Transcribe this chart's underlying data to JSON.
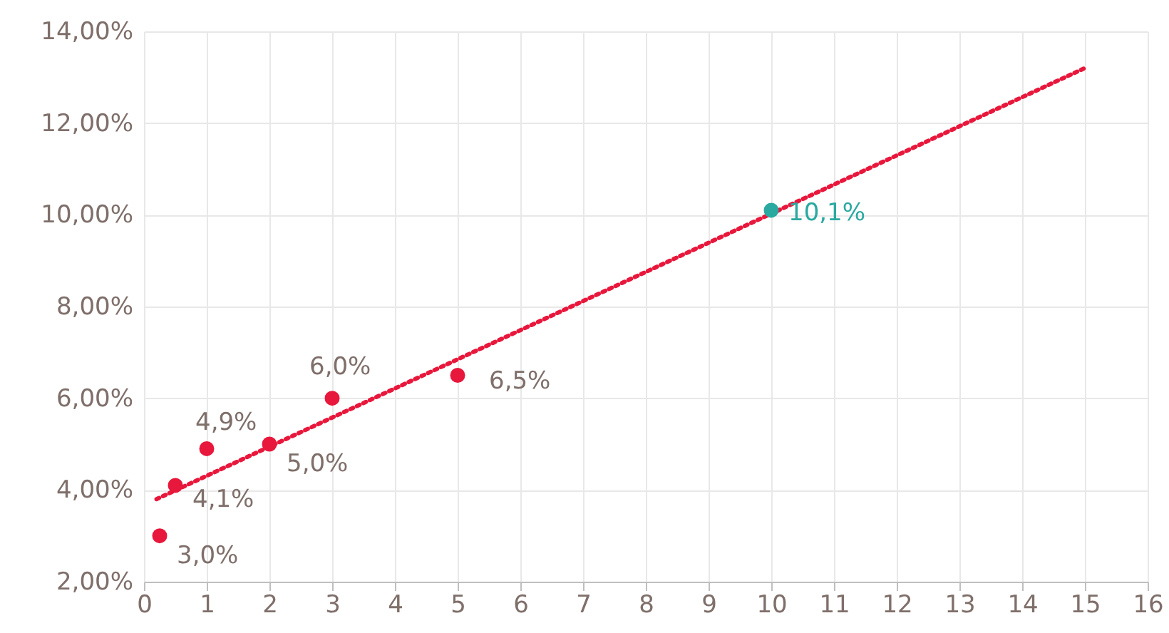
{
  "chart_data": {
    "type": "scatter",
    "xlim": [
      0,
      16
    ],
    "xticks": [
      0,
      1,
      2,
      3,
      4,
      5,
      6,
      7,
      8,
      9,
      10,
      11,
      12,
      13,
      14,
      15,
      16
    ],
    "ylim": [
      2,
      14
    ],
    "yticks": [
      {
        "value": 2,
        "label": "2,00%"
      },
      {
        "value": 4,
        "label": "4,00%"
      },
      {
        "value": 6,
        "label": "6,00%"
      },
      {
        "value": 8,
        "label": "8,00%"
      },
      {
        "value": 10,
        "label": "10,00%"
      },
      {
        "value": 12,
        "label": "12,00%"
      },
      {
        "value": 14,
        "label": "14,00%"
      }
    ],
    "grid": true,
    "series": [
      {
        "type": "line",
        "color": "#e8173c",
        "line_style": "dotted",
        "x": [
          0.2,
          15
        ],
        "values": [
          3.8,
          13.2
        ]
      },
      {
        "marker": "circle",
        "color": "#e8173c",
        "x": [
          0.25,
          0.5,
          1,
          2,
          3,
          5
        ],
        "values": [
          3.0,
          4.1,
          4.9,
          5.0,
          6.0,
          6.5
        ],
        "value_labels": [
          "3,0%",
          "4,1%",
          "4,9%",
          "5,0%",
          "6,0%",
          "6,5%"
        ]
      },
      {
        "marker": "circle",
        "color": "#2aa9a0",
        "x": [
          10
        ],
        "values": [
          10.1
        ],
        "value_labels": [
          "10,1%"
        ]
      }
    ]
  }
}
